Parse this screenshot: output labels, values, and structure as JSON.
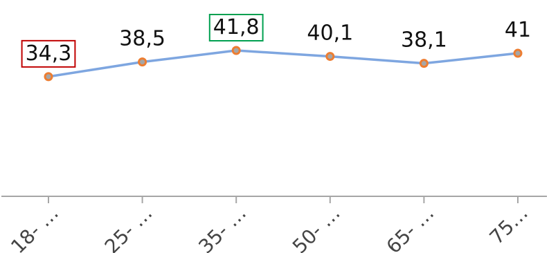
{
  "chart_data": {
    "type": "line",
    "categories": [
      "18- …",
      "25- …",
      "35- …",
      "50- …",
      "65- …",
      "75…"
    ],
    "values": [
      34.3,
      38.5,
      41.8,
      40.1,
      38.1,
      41
    ],
    "data_labels": [
      "34,3",
      "38,5",
      "41,8",
      "40,1",
      "38,1",
      "41"
    ],
    "title": "",
    "xlabel": "",
    "ylabel": "",
    "ylim": [
      0,
      45
    ],
    "grid": false,
    "legend": "none",
    "highlights": [
      {
        "index": 0,
        "color": "#c00000"
      },
      {
        "index": 2,
        "color": "#00a050"
      }
    ],
    "colors": {
      "line": "#7ea6e0",
      "marker_fill": "#a6a6a6",
      "marker_stroke": "#ed7d31",
      "axis": "#a6a6a6",
      "text": "#111111"
    }
  }
}
